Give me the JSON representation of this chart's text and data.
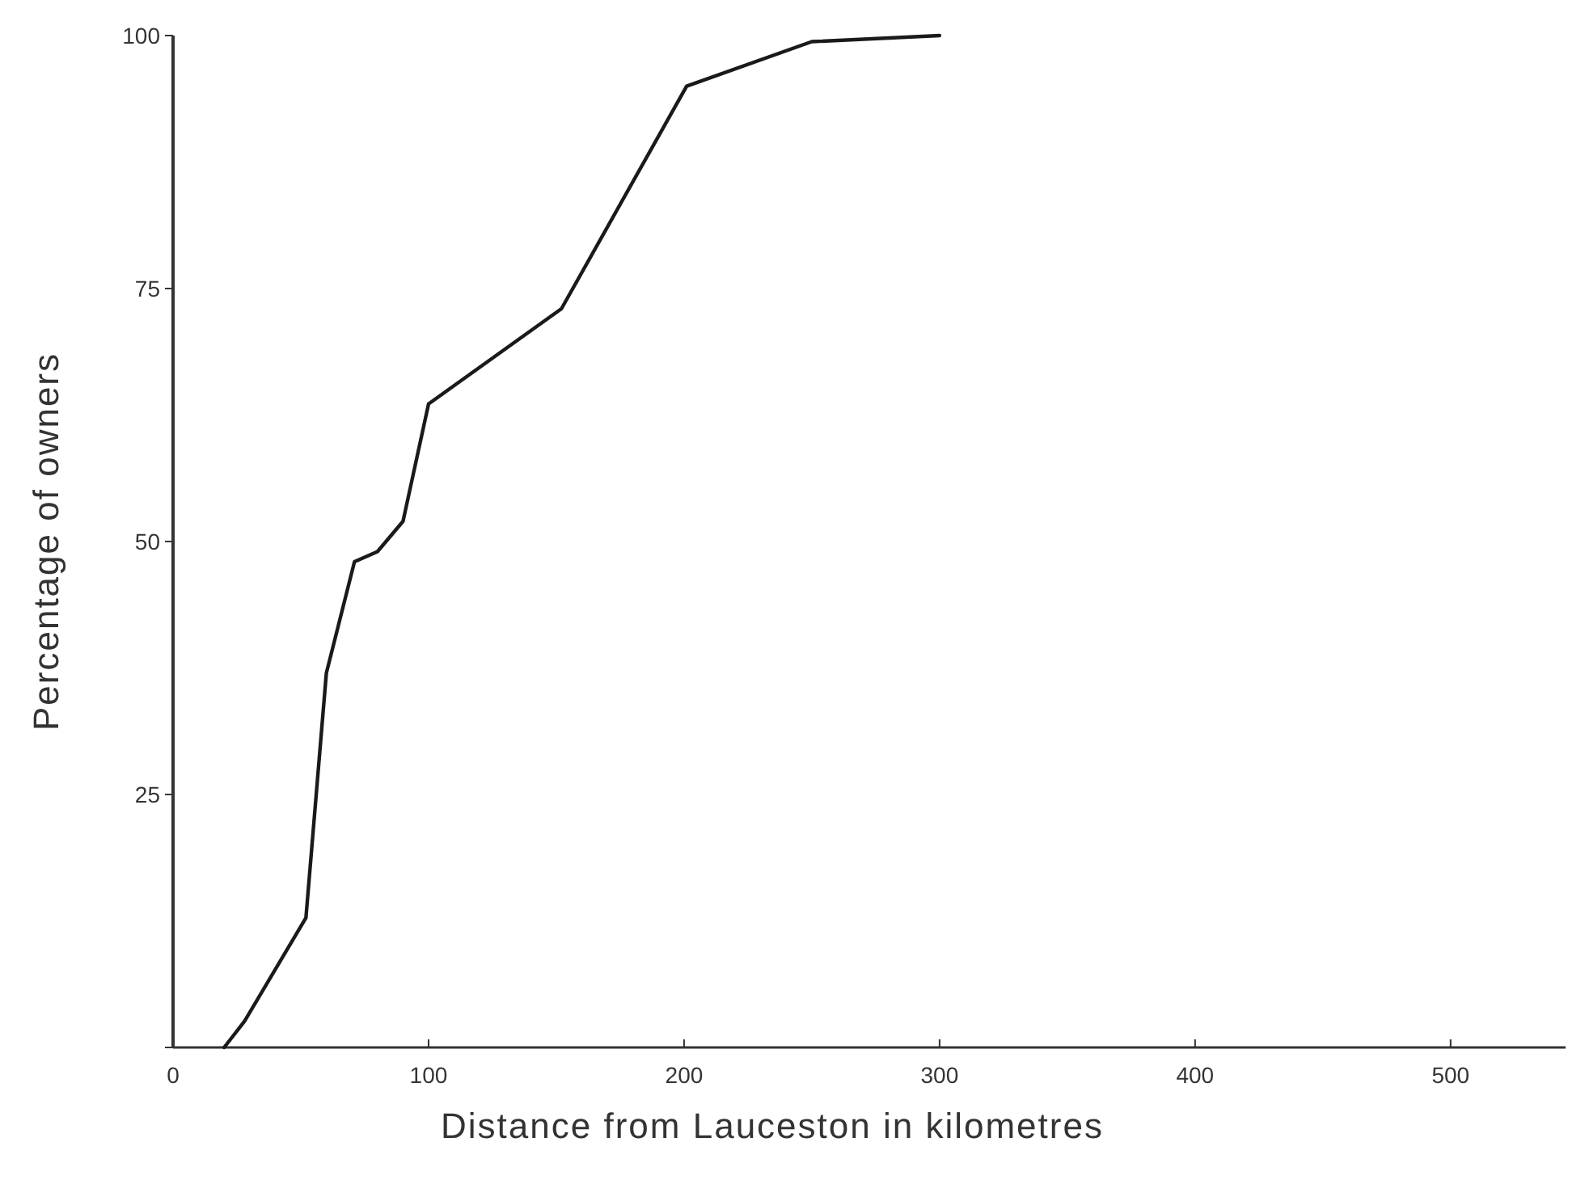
{
  "chart_data": {
    "type": "line",
    "xlabel": "Distance from Lauceston  in kilometres",
    "ylabel": "Percentage of owners",
    "x": [
      20,
      28,
      52,
      60,
      71,
      80,
      90,
      100,
      152,
      201,
      250,
      300
    ],
    "values": [
      0,
      2.6,
      12.8,
      37,
      48,
      49,
      52,
      63.6,
      73,
      95,
      99.4,
      100
    ],
    "color": "#1a1a1a",
    "xlim": [
      0,
      545
    ],
    "ylim": [
      0,
      100
    ],
    "xticks": [
      0,
      100,
      200,
      300,
      400,
      500
    ],
    "yticks": [
      {
        "value": 0,
        "label": null
      },
      25,
      50,
      75,
      100
    ],
    "grid": false,
    "marker": "none",
    "line_style": "solid"
  }
}
